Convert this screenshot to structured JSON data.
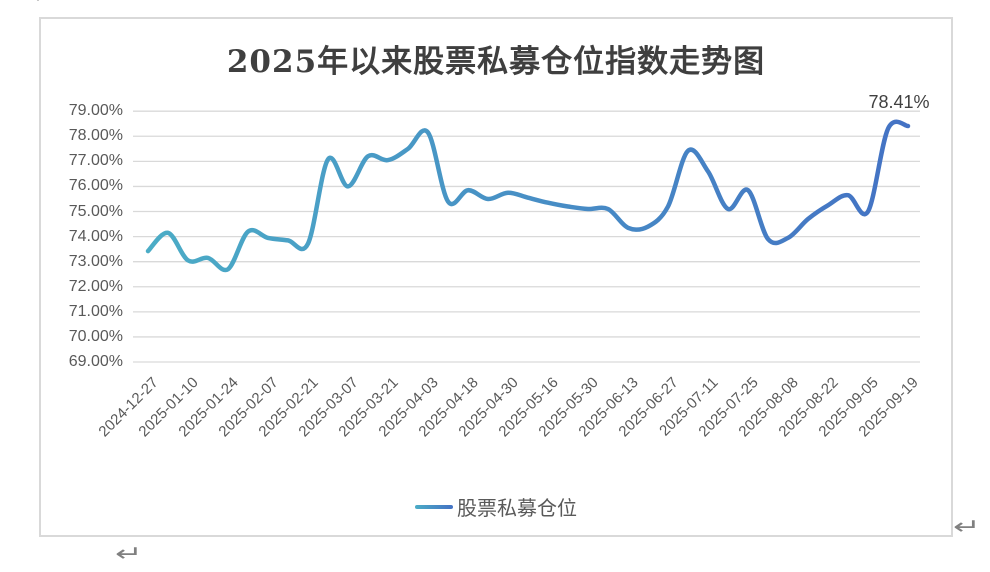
{
  "page": {
    "return_mark": "↵"
  },
  "chart": {
    "title": "2025年以来股票私募仓位指数走势图",
    "legend": {
      "label": "股票私募仓位"
    },
    "annotation": "78.41%",
    "colors": {
      "line_gradient_start": "#4BACC6",
      "line_gradient_end": "#4472C4",
      "gridline": "#D9D9D9",
      "frame_border": "#D9D9D9",
      "axis_text": "#595959",
      "title_text": "#3F3F3F",
      "annotation_text": "#404040"
    }
  },
  "chart_data": {
    "type": "line",
    "title": "2025年以来股票私募仓位指数走势图",
    "smooth": true,
    "grid": "horizontal",
    "legend_position": "bottom",
    "ylim": [
      69,
      79
    ],
    "yticks": [
      "79.00%",
      "78.00%",
      "77.00%",
      "76.00%",
      "75.00%",
      "74.00%",
      "73.00%",
      "72.00%",
      "71.00%",
      "70.00%",
      "69.00%"
    ],
    "x_tick_labels": [
      "2024-12-27",
      "2025-01-10",
      "2025-01-24",
      "2025-02-07",
      "2025-02-21",
      "2025-03-07",
      "2025-03-21",
      "2025-04-03",
      "2025-04-18",
      "2025-04-30",
      "2025-05-16",
      "2025-05-30",
      "2025-06-13",
      "2025-06-27",
      "2025-07-11",
      "2025-07-25",
      "2025-08-08",
      "2025-08-22",
      "2025-09-05",
      "2025-09-19"
    ],
    "series": [
      {
        "name": "股票私募仓位",
        "x": [
          "2024-12-27",
          "2025-01-03",
          "2025-01-10",
          "2025-01-17",
          "2025-01-24",
          "2025-01-31",
          "2025-02-07",
          "2025-02-14",
          "2025-02-21",
          "2025-02-28",
          "2025-03-07",
          "2025-03-14",
          "2025-03-21",
          "2025-03-28",
          "2025-04-03",
          "2025-04-11",
          "2025-04-18",
          "2025-04-25",
          "2025-04-30",
          "2025-05-09",
          "2025-05-16",
          "2025-05-23",
          "2025-05-30",
          "2025-06-06",
          "2025-06-13",
          "2025-06-20",
          "2025-06-27",
          "2025-07-04",
          "2025-07-11",
          "2025-07-18",
          "2025-07-25",
          "2025-08-01",
          "2025-08-08",
          "2025-08-15",
          "2025-08-22",
          "2025-08-29",
          "2025-09-05",
          "2025-09-12",
          "2025-09-19"
        ],
        "values": [
          73.42,
          74.15,
          73.05,
          73.15,
          72.7,
          74.2,
          73.95,
          73.85,
          73.72,
          77.08,
          76.0,
          77.2,
          77.05,
          77.5,
          78.15,
          75.4,
          75.85,
          75.5,
          75.75,
          75.55,
          75.35,
          75.2,
          75.1,
          75.1,
          74.35,
          74.4,
          75.2,
          77.42,
          76.6,
          75.1,
          75.85,
          73.9,
          73.95,
          74.7,
          75.25,
          75.65,
          75.0,
          78.3,
          78.41
        ]
      }
    ],
    "annotation": {
      "text": "78.41%",
      "at_x": "2025-09-19",
      "value": 78.41
    }
  }
}
